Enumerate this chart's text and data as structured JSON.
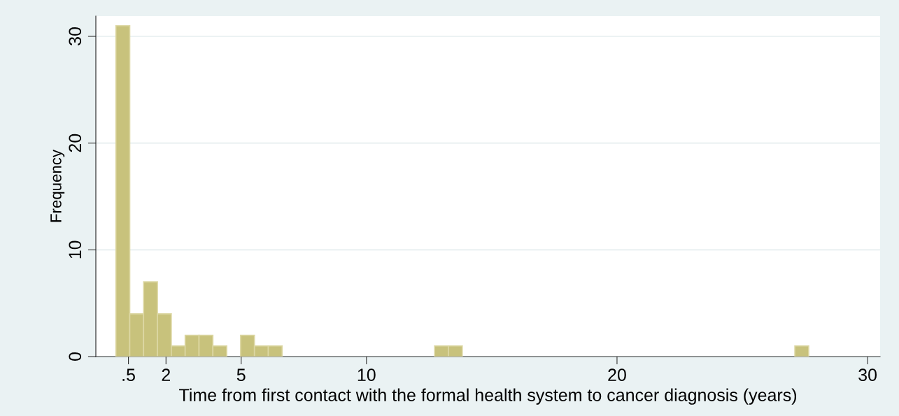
{
  "chart_data": {
    "type": "histogram",
    "xlabel": "Time from first contact with the formal health system to cancer diagnosis (years)",
    "ylabel": "Frequency",
    "bins": [
      0,
      0.553,
      1.106,
      1.659,
      2.212,
      2.765,
      3.318,
      3.871,
      4.424,
      4.977,
      5.53,
      6.083,
      6.636,
      7.189,
      7.742,
      8.295,
      8.848,
      9.401,
      9.954,
      10.507,
      11.06,
      11.613,
      12.166,
      12.719,
      13.272,
      13.825,
      14.378,
      14.931,
      15.484,
      16.037,
      16.59,
      17.143,
      17.696,
      18.249,
      18.802,
      19.355,
      19.908,
      20.461,
      21.014,
      21.567,
      22.12,
      22.673,
      23.226,
      23.779,
      24.332,
      24.885,
      25.438,
      25.991,
      26.544,
      27.097,
      27.65
    ],
    "values": [
      31,
      4,
      7,
      4,
      1,
      2,
      2,
      1,
      0,
      2,
      1,
      1,
      0,
      0,
      0,
      0,
      0,
      0,
      0,
      0,
      0,
      0,
      0,
      1,
      1,
      0,
      0,
      0,
      0,
      0,
      0,
      0,
      0,
      0,
      0,
      0,
      0,
      0,
      0,
      0,
      0,
      0,
      0,
      0,
      0,
      0,
      0,
      0,
      0,
      1
    ],
    "color": "#c8c27c",
    "xlim": [
      -0.8,
      30.5
    ],
    "xticks": [
      {
        "value": 0.5,
        "label": ".5"
      },
      2,
      5,
      10,
      20,
      30
    ],
    "ylim": [
      0,
      31.9
    ],
    "yticks": [
      0,
      10,
      20,
      30
    ],
    "grid": "y"
  }
}
